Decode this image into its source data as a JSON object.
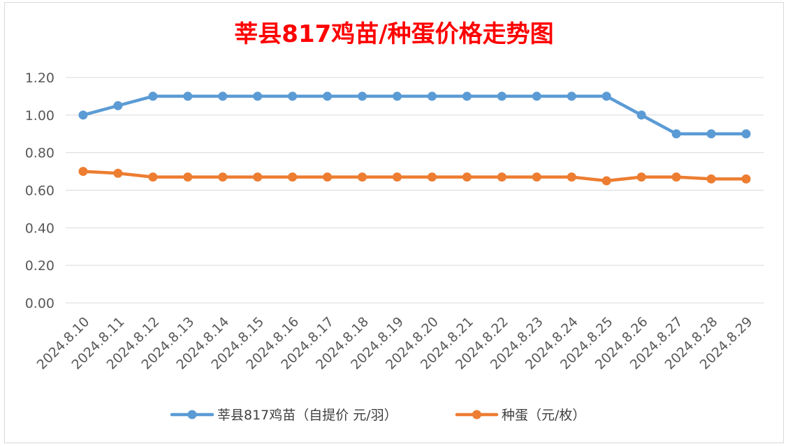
{
  "chart_data": {
    "type": "line",
    "title": "莘县817鸡苗/种蛋价格走势图",
    "xlabel": "",
    "ylabel": "",
    "categories": [
      "2024.8.10",
      "2024.8.11",
      "2024.8.12",
      "2024.8.13",
      "2024.8.14",
      "2024.8.15",
      "2024.8.16",
      "2024.8.17",
      "2024.8.18",
      "2024.8.19",
      "2024.8.20",
      "2024.8.21",
      "2024.8.22",
      "2024.8.23",
      "2024.8.24",
      "2024.8.25",
      "2024.8.26",
      "2024.8.27",
      "2024.8.28",
      "2024.8.29"
    ],
    "y_ticks": [
      "0.00",
      "0.20",
      "0.40",
      "0.60",
      "0.80",
      "1.00",
      "1.20"
    ],
    "ylim": [
      0,
      1.2
    ],
    "grid": true,
    "legend_position": "bottom",
    "series": [
      {
        "name": "莘县817鸡苗（自提价 元/羽）",
        "color": "#5b9bd5",
        "values": [
          1.0,
          1.05,
          1.1,
          1.1,
          1.1,
          1.1,
          1.1,
          1.1,
          1.1,
          1.1,
          1.1,
          1.1,
          1.1,
          1.1,
          1.1,
          1.1,
          1.0,
          0.9,
          0.9,
          0.9
        ]
      },
      {
        "name": "种蛋（元/枚）",
        "color": "#ed7d31",
        "values": [
          0.7,
          0.69,
          0.67,
          0.67,
          0.67,
          0.67,
          0.67,
          0.67,
          0.67,
          0.67,
          0.67,
          0.67,
          0.67,
          0.67,
          0.67,
          0.65,
          0.67,
          0.67,
          0.66,
          0.66
        ]
      }
    ]
  }
}
